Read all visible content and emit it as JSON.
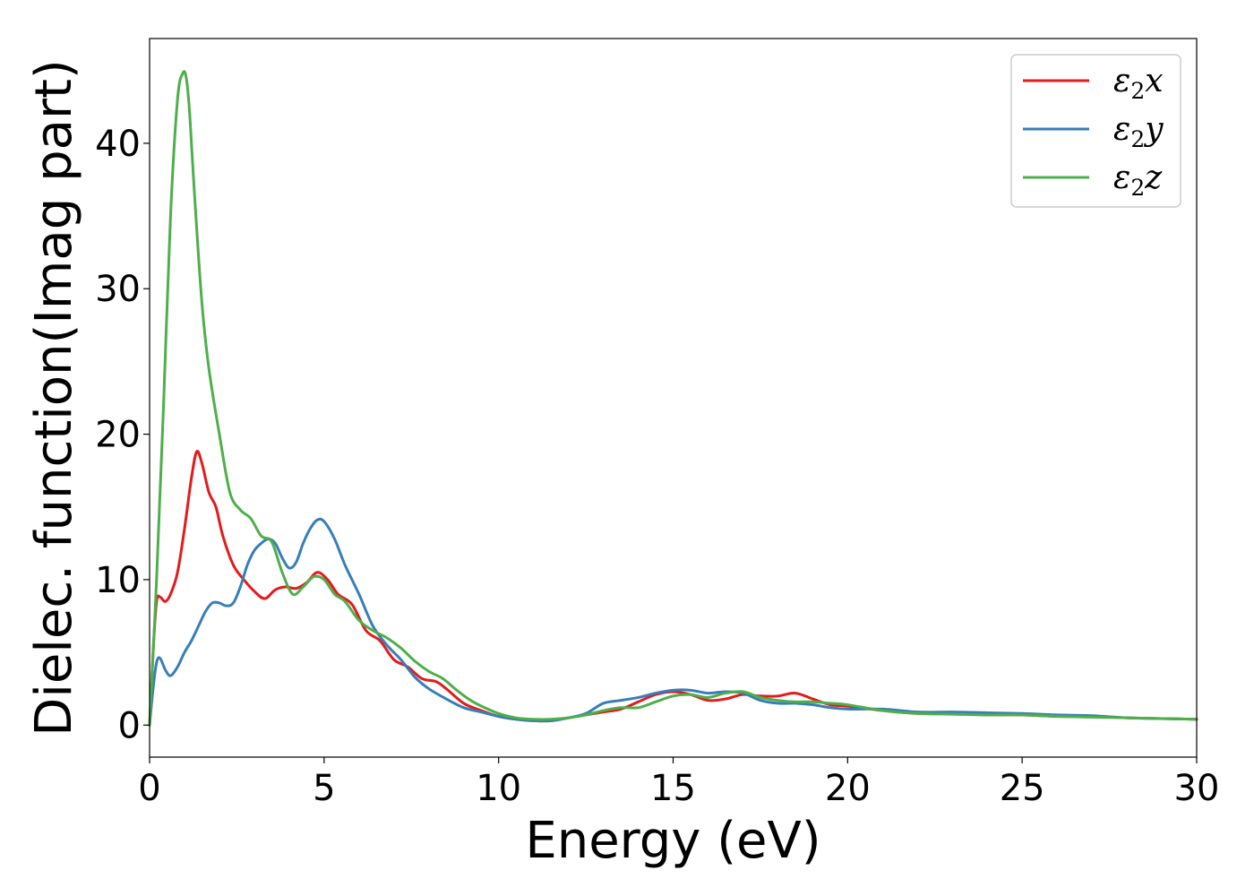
{
  "chart_data": {
    "type": "line",
    "xlabel": "Energy (eV)",
    "ylabel": "Dielec. function(Imag part)",
    "xlim": [
      0,
      30
    ],
    "ylim": [
      -2.2,
      47.2
    ],
    "xticks": [
      0,
      5,
      10,
      15,
      20,
      25,
      30
    ],
    "yticks": [
      0,
      10,
      20,
      30,
      40
    ],
    "grid": false,
    "legend_position": "top-right",
    "series": [
      {
        "name": "ε₂x",
        "legend": {
          "base": "ε",
          "sub": "2",
          "axis": "x"
        },
        "color": "#e41a1c",
        "x": [
          0,
          0.1,
          0.2,
          0.3,
          0.45,
          0.6,
          0.8,
          1.0,
          1.2,
          1.35,
          1.5,
          1.7,
          1.9,
          2.1,
          2.4,
          2.7,
          3.0,
          3.3,
          3.6,
          3.9,
          4.2,
          4.5,
          4.8,
          5.1,
          5.4,
          5.8,
          6.2,
          6.6,
          7.0,
          7.4,
          7.8,
          8.2,
          8.5,
          9.0,
          9.5,
          10.0,
          10.5,
          11.0,
          11.5,
          12.0,
          12.5,
          13.0,
          13.5,
          14.0,
          14.5,
          15.0,
          15.5,
          16.0,
          16.5,
          17.0,
          17.5,
          18.0,
          18.5,
          19.0,
          19.5,
          20.0,
          21.0,
          22.0,
          23.0,
          24.0,
          25.0,
          26.0,
          27.0,
          28.0,
          29.0,
          30.0
        ],
        "y": [
          0.0,
          5.0,
          8.5,
          8.8,
          8.5,
          9.0,
          10.5,
          13.5,
          17.0,
          18.8,
          18.0,
          16.0,
          15.0,
          13.0,
          11.0,
          10.0,
          9.2,
          8.7,
          9.3,
          9.5,
          9.4,
          9.8,
          10.5,
          10.0,
          9.0,
          8.3,
          6.5,
          5.8,
          4.5,
          4.0,
          3.2,
          3.0,
          2.5,
          1.5,
          1.0,
          0.6,
          0.4,
          0.3,
          0.3,
          0.5,
          0.7,
          0.9,
          1.1,
          1.6,
          2.1,
          2.3,
          2.1,
          1.7,
          1.8,
          2.1,
          2.0,
          2.0,
          2.2,
          1.8,
          1.4,
          1.3,
          1.0,
          0.8,
          0.8,
          0.7,
          0.7,
          0.6,
          0.6,
          0.5,
          0.45,
          0.4
        ]
      },
      {
        "name": "ε₂y",
        "legend": {
          "base": "ε",
          "sub": "2",
          "axis": "y"
        },
        "color": "#377eb8",
        "x": [
          0,
          0.1,
          0.2,
          0.3,
          0.45,
          0.6,
          0.8,
          1.0,
          1.2,
          1.4,
          1.6,
          1.8,
          2.0,
          2.2,
          2.4,
          2.6,
          2.8,
          3.0,
          3.2,
          3.4,
          3.6,
          3.8,
          4.0,
          4.2,
          4.4,
          4.6,
          4.8,
          5.0,
          5.3,
          5.6,
          6.0,
          6.4,
          6.8,
          7.2,
          7.6,
          8.0,
          8.5,
          9.0,
          9.5,
          10.0,
          10.5,
          11.0,
          11.5,
          12.0,
          12.5,
          13.0,
          13.5,
          14.0,
          14.5,
          15.0,
          15.5,
          16.0,
          16.5,
          17.0,
          17.5,
          18.0,
          18.5,
          19.0,
          19.5,
          20.0,
          21.0,
          22.0,
          23.0,
          24.0,
          25.0,
          26.0,
          27.0,
          28.0,
          29.0,
          30.0
        ],
        "y": [
          0.0,
          2.5,
          4.3,
          4.6,
          3.8,
          3.4,
          4.0,
          5.0,
          5.8,
          6.8,
          7.8,
          8.4,
          8.4,
          8.2,
          8.4,
          9.5,
          11.0,
          12.0,
          12.5,
          12.8,
          12.5,
          11.5,
          10.8,
          11.2,
          12.5,
          13.5,
          14.1,
          14.0,
          12.8,
          11.0,
          9.0,
          6.8,
          5.5,
          4.5,
          3.3,
          2.5,
          1.8,
          1.2,
          0.9,
          0.6,
          0.4,
          0.3,
          0.3,
          0.5,
          0.8,
          1.5,
          1.7,
          1.9,
          2.2,
          2.4,
          2.4,
          2.2,
          2.3,
          2.2,
          1.7,
          1.5,
          1.5,
          1.4,
          1.2,
          1.1,
          1.1,
          0.9,
          0.9,
          0.85,
          0.8,
          0.7,
          0.65,
          0.5,
          0.45,
          0.4
        ]
      },
      {
        "name": "ε₂z",
        "legend": {
          "base": "ε",
          "sub": "2",
          "axis": "z"
        },
        "color": "#4daf4a",
        "x": [
          0,
          0.2,
          0.4,
          0.6,
          0.8,
          0.95,
          1.05,
          1.15,
          1.3,
          1.5,
          1.7,
          2.0,
          2.3,
          2.6,
          2.9,
          3.2,
          3.5,
          3.8,
          4.1,
          4.4,
          4.7,
          5.0,
          5.3,
          5.6,
          6.0,
          6.4,
          6.8,
          7.2,
          7.6,
          8.0,
          8.4,
          8.8,
          9.2,
          9.6,
          10.0,
          10.5,
          11.0,
          11.5,
          12.0,
          12.5,
          13.0,
          13.5,
          14.0,
          14.5,
          15.0,
          15.5,
          16.0,
          16.5,
          17.0,
          17.5,
          18.0,
          18.5,
          19.0,
          19.5,
          20.0,
          21.0,
          22.0,
          23.0,
          24.0,
          25.0,
          26.0,
          27.0,
          28.0,
          29.0,
          30.0
        ],
        "y": [
          0.0,
          10.0,
          22.0,
          35.0,
          43.0,
          44.8,
          44.5,
          42.0,
          36.0,
          29.0,
          24.5,
          20.0,
          16.0,
          14.8,
          14.2,
          13.0,
          12.6,
          10.5,
          9.0,
          9.5,
          10.2,
          10.0,
          9.0,
          8.5,
          7.2,
          6.5,
          6.0,
          5.3,
          4.4,
          3.7,
          3.2,
          2.4,
          1.7,
          1.2,
          0.8,
          0.5,
          0.4,
          0.4,
          0.5,
          0.7,
          1.0,
          1.2,
          1.2,
          1.6,
          2.0,
          2.1,
          1.9,
          2.2,
          2.3,
          1.9,
          1.7,
          1.6,
          1.6,
          1.5,
          1.4,
          1.0,
          0.8,
          0.75,
          0.7,
          0.7,
          0.6,
          0.55,
          0.5,
          0.45,
          0.4
        ]
      }
    ]
  }
}
